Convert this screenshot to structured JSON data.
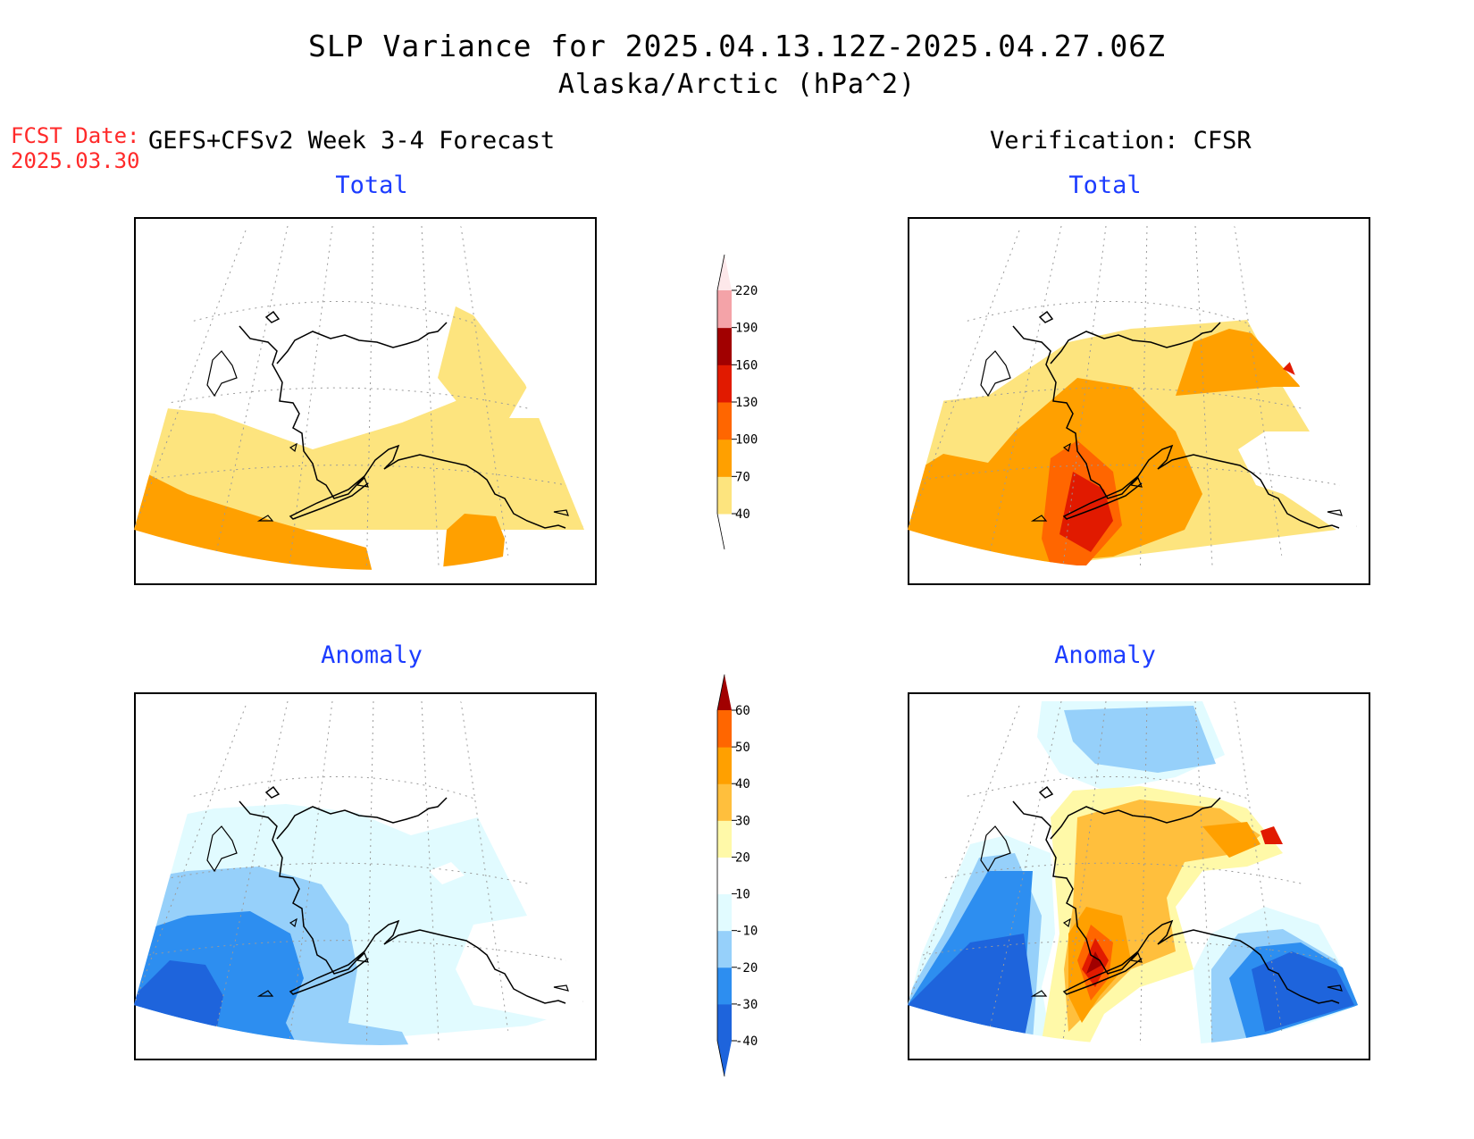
{
  "title": {
    "line1": "SLP Variance for 2025.04.13.12Z-2025.04.27.06Z",
    "line2": "Alaska/Arctic (hPa^2)"
  },
  "forecast_date": {
    "label": "FCST Date:",
    "value": "2025.03.30"
  },
  "columns": {
    "left_header": "GEFS+CFSv2 Week 3-4 Forecast",
    "right_header": "Verification: CFSR"
  },
  "panels": [
    {
      "id": "fcst-total",
      "subtitle": "Total"
    },
    {
      "id": "verif-total",
      "subtitle": "Total"
    },
    {
      "id": "fcst-anomaly",
      "subtitle": "Anomaly"
    },
    {
      "id": "verif-anomaly",
      "subtitle": "Anomaly"
    }
  ],
  "colorbars": {
    "total": {
      "levels": [
        "40",
        "70",
        "100",
        "130",
        "160",
        "190",
        "220"
      ],
      "colors": [
        "#ffffff",
        "#fde47e",
        "#ffa000",
        "#ff6600",
        "#e11a00",
        "#a10000",
        "#f4a3a8",
        "#fde8ea"
      ]
    },
    "anomaly": {
      "levels": [
        "-40",
        "-30",
        "-20",
        "-10",
        "10",
        "20",
        "30",
        "40",
        "50",
        "60"
      ],
      "colors": [
        "#1e64dc",
        "#1e64dc",
        "#2d8ef0",
        "#96d0fa",
        "#e1fbff",
        "#ffffff",
        "#fff9a8",
        "#ffbf3d",
        "#ffa000",
        "#ff6600",
        "#e11a00",
        "#a10000"
      ]
    }
  },
  "palette": {
    "title_text": "#000000",
    "subtitle_text": "#1c3cff",
    "forecast_date_text": "#ff2a2a"
  }
}
